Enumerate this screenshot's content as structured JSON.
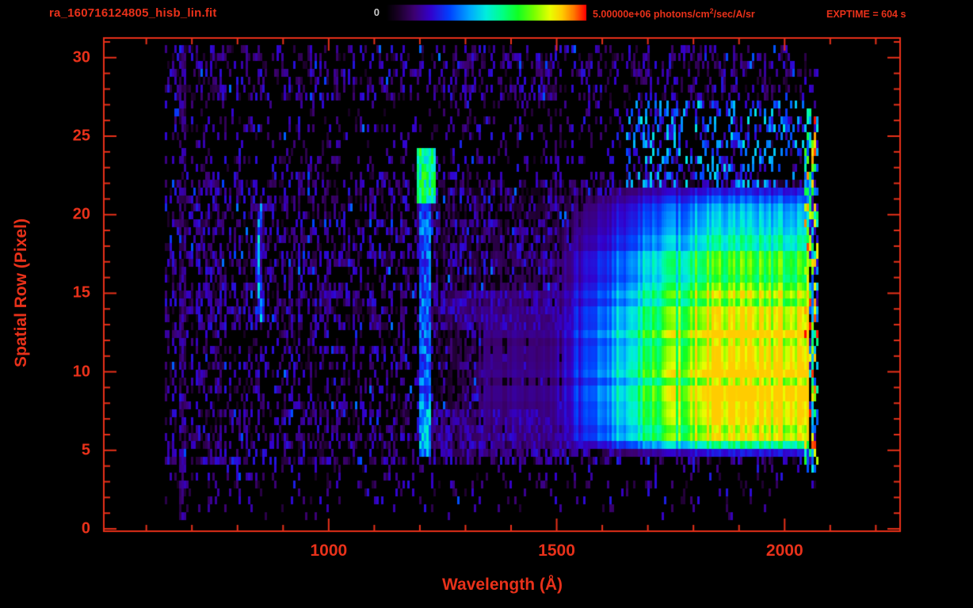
{
  "colors": {
    "background": "#000000",
    "accent": "#e8311a",
    "colorbar_zero_color": "#c8c8c8"
  },
  "header": {
    "filename": "ra_160716124805_hisb_lin.fit",
    "colorbar_min_label": "0",
    "colorbar_max_value": "5.00000e+06",
    "colorbar_units_pre": " photons/cm",
    "colorbar_units_sup": "2",
    "colorbar_units_post": "/sec/A/sr",
    "exptime_label": "EXPTIME = 604 s"
  },
  "chart_data": {
    "type": "heatmap",
    "title": "ra_160716124805_hisb_lin.fit",
    "xlabel": "Wavelength (Å)",
    "ylabel": "Spatial Row (Pixel)",
    "xlim": [
      505,
      2255
    ],
    "ylim": [
      -0.2,
      31.3
    ],
    "x_ticks": [
      1000,
      1500,
      2000
    ],
    "x_minor_tick_step": 100,
    "y_ticks": [
      0,
      5,
      10,
      15,
      20,
      25,
      30
    ],
    "y_minor_tick_step": 1,
    "exposure_time_s": 604,
    "colorbar": {
      "min": 0,
      "max": 5000000,
      "max_label": "5.00000e+06",
      "units": "photons/cm^2/sec/A/sr",
      "colormap_stops": [
        [
          0.0,
          "#000000"
        ],
        [
          0.06,
          "#1a0026"
        ],
        [
          0.14,
          "#3c0070"
        ],
        [
          0.22,
          "#3300cc"
        ],
        [
          0.32,
          "#0044ff"
        ],
        [
          0.42,
          "#00aaff"
        ],
        [
          0.5,
          "#00eedd"
        ],
        [
          0.58,
          "#00ff88"
        ],
        [
          0.66,
          "#11ff22"
        ],
        [
          0.74,
          "#77ff00"
        ],
        [
          0.82,
          "#e8ff00"
        ],
        [
          0.88,
          "#ffcc00"
        ],
        [
          0.94,
          "#ff7700"
        ],
        [
          1.0,
          "#ff0000"
        ]
      ]
    },
    "data_extent": {
      "wavelength_A": [
        640,
        2072
      ],
      "rows": [
        0.4,
        30.6
      ]
    },
    "features": [
      {
        "name": "background-speckle",
        "type": "noise",
        "description": "sparse purple/blue detector noise dashes over black",
        "intensity_range": [
          0.05,
          0.37
        ],
        "row_density": [
          [
            0,
            1,
            0.03
          ],
          [
            1,
            4.2,
            0.12
          ],
          [
            4.2,
            22,
            0.4
          ],
          [
            22,
            27,
            0.2
          ],
          [
            27,
            30.6,
            0.3
          ]
        ]
      },
      {
        "name": "faint-line-680A",
        "type": "vertical-line",
        "wavelength_A": [
          672,
          687
        ],
        "rows": [
          0.8,
          30.5
        ],
        "intensity": 0.14,
        "density": 0.75
      },
      {
        "name": "arc-feature-850A",
        "type": "arc",
        "wavelength_center_A": 846,
        "curvature_A_per_row2": 0.55,
        "center_row": 17,
        "rows": [
          13.2,
          20.6
        ],
        "half_width_A": 6,
        "intensity": 0.42
      },
      {
        "name": "lyman-alpha-line-1216A",
        "type": "vertical-line",
        "wavelength_A": [
          1201,
          1223
        ],
        "rows": [
          4.7,
          20.6
        ],
        "intensity": 0.34,
        "intensity_low_rows": 0.42,
        "bright_blob": {
          "wavelength_A": [
            1192,
            1234
          ],
          "rows": [
            20.6,
            24.2
          ],
          "intensity": 0.55
        }
      },
      {
        "name": "blue-fringe-bands",
        "type": "horizontal-bands",
        "wavelength_A": [
          1210,
          1580
        ],
        "row_bands": [
          [
            4.7,
            7.8
          ],
          [
            12.6,
            15.2
          ]
        ],
        "intensity": 0.17
      },
      {
        "name": "bright-continuum",
        "type": "blob",
        "wavelength_A": [
          1180,
          2066
        ],
        "ramp_start_A": 1500,
        "ramp_full_A": 1830,
        "rows": [
          4.5,
          22.1
        ],
        "core_rows": [
          7.2,
          13.8
        ],
        "peak_intensity": 0.78,
        "cap": 0.88
      },
      {
        "name": "upper-right-noise",
        "type": "noise",
        "wavelength_A": [
          1650,
          2058
        ],
        "rows": [
          21.5,
          27.5
        ],
        "density": 0.3,
        "intensity_range": [
          0.2,
          0.5
        ]
      },
      {
        "name": "right-edge-hot-pixels",
        "type": "vertical-line",
        "wavelength_A": [
          2042,
          2072
        ],
        "rows": [
          3.5,
          27
        ],
        "density": 0.55,
        "intensity_range": [
          0.3,
          1.0
        ]
      }
    ]
  }
}
